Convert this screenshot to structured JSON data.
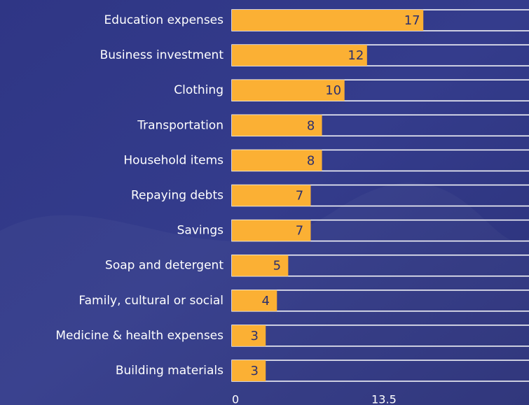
{
  "chart_data": {
    "type": "bar",
    "orientation": "horizontal",
    "categories": [
      "Education expenses",
      "Business investment",
      "Clothing",
      "Transportation",
      "Household items",
      "Repaying debts",
      "Savings",
      "Soap and detergent",
      "Family, cultural or social",
      "Medicine & health expenses",
      "Building materials"
    ],
    "values": [
      17,
      12,
      10,
      8,
      8,
      7,
      7,
      5,
      4,
      3,
      3
    ],
    "color": "#fbb034",
    "xlim": [
      0,
      27
    ],
    "xticks": [
      0,
      13.5,
      27
    ]
  }
}
